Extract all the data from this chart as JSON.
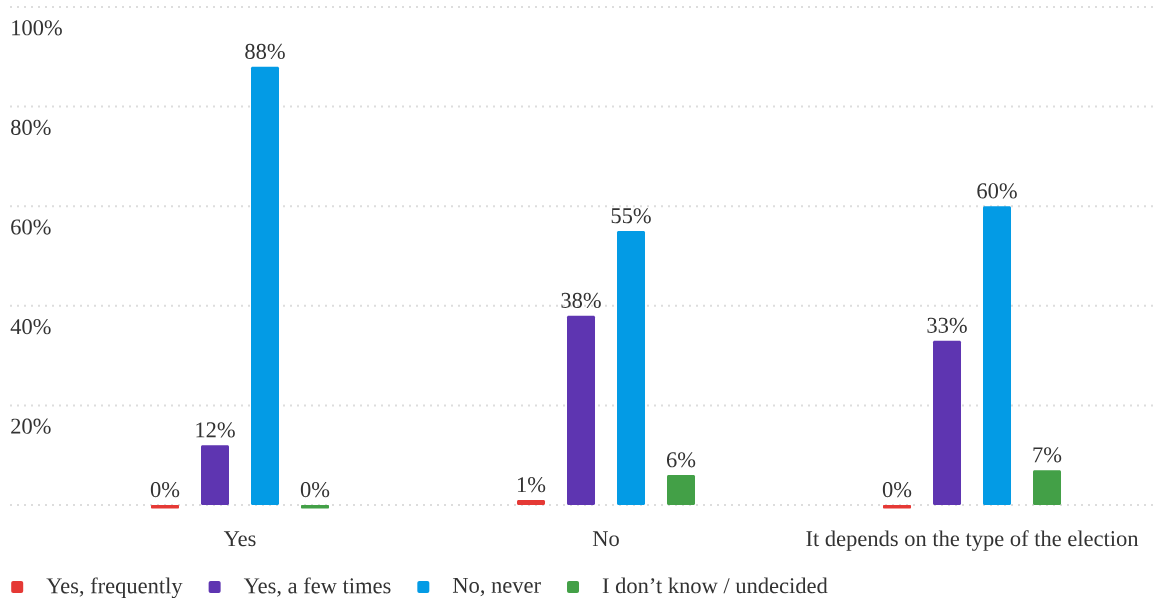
{
  "chart_data": {
    "type": "bar",
    "categories": [
      "Yes",
      "No",
      "It depends on the type of the election"
    ],
    "series": [
      {
        "name": "Yes, frequently",
        "color": "#e53935",
        "values": [
          0,
          1,
          0
        ],
        "value_labels": [
          "0%",
          "1%",
          "0%"
        ]
      },
      {
        "name": "Yes, a few times",
        "color": "#5e35b1",
        "values": [
          12,
          38,
          33
        ],
        "value_labels": [
          "12%",
          "38%",
          "33%"
        ]
      },
      {
        "name": "No, never",
        "color": "#039be5",
        "values": [
          88,
          55,
          60
        ],
        "value_labels": [
          "88%",
          "55%",
          "60%"
        ]
      },
      {
        "name": "I don’t know / undecided",
        "color": "#43a047",
        "values": [
          0,
          6,
          7
        ],
        "value_labels": [
          "0%",
          "6%",
          "7%"
        ]
      }
    ],
    "ylim": [
      0,
      100
    ],
    "yticks": [
      {
        "value": 0,
        "label": null
      },
      {
        "value": 20,
        "label": "20%"
      },
      {
        "value": 40,
        "label": "40%"
      },
      {
        "value": 60,
        "label": "60%"
      },
      {
        "value": 80,
        "label": "80%"
      },
      {
        "value": 100,
        "label": "100%"
      }
    ],
    "grid": "y",
    "legend": "bottom left"
  }
}
